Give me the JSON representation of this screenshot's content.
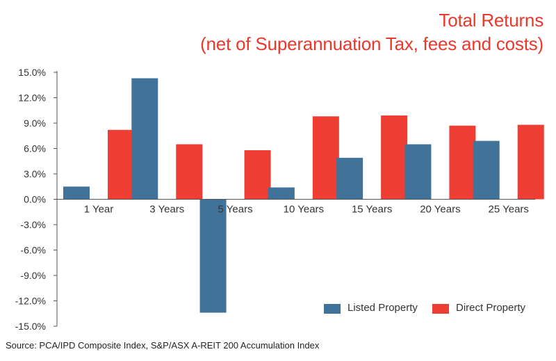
{
  "chart_data": {
    "type": "bar",
    "title": "Total Returns",
    "subtitle": "(net of Superannuation Tax, fees and costs)",
    "xlabel": "",
    "ylabel": "",
    "categories": [
      "1 Year",
      "3 Years",
      "5 Years",
      "10 Years",
      "15 Years",
      "20 Years",
      "25 Years"
    ],
    "series": [
      {
        "name": "Listed Property",
        "color": "#41739a",
        "values": [
          1.5,
          14.3,
          -13.4,
          1.4,
          4.9,
          6.5,
          6.9
        ]
      },
      {
        "name": "Direct Property",
        "color": "#ee3d33",
        "values": [
          8.2,
          6.5,
          5.8,
          9.8,
          9.9,
          8.7,
          8.8
        ]
      }
    ],
    "ylim": [
      -15,
      15
    ],
    "yticks": [
      15,
      12,
      9,
      6,
      3,
      0,
      -3,
      -6,
      -9,
      -12,
      -15
    ],
    "ytick_labels": [
      "15.0%",
      "12.0%",
      "9.0%",
      "6.0%",
      "3.0%",
      "0.0%",
      "-3.0%",
      "-6.0%",
      "-9.0%",
      "-12.0%",
      "-15.0%"
    ],
    "grid": false,
    "legend_position": "bottom-right",
    "source": "Source: PCA/IPD Composite Index, S&P/ASX A-REIT 200 Accumulation Index"
  }
}
